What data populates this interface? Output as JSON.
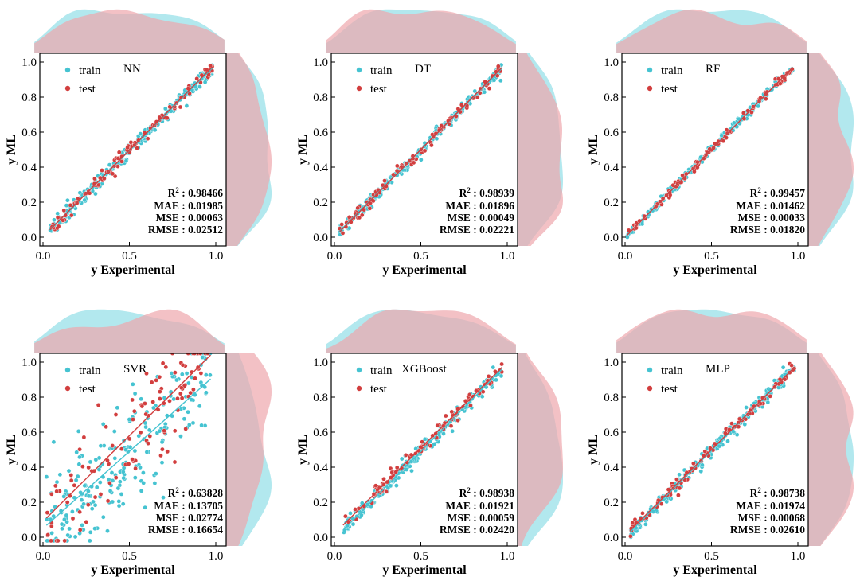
{
  "figure": {
    "colors": {
      "train": "#45c3d1",
      "test": "#d23e3e",
      "train_fill": "#9fe2ea",
      "test_fill": "#eea7ac",
      "overlap_fill": "#c8a9b0"
    }
  },
  "chart_data": [
    {
      "type": "scatter",
      "model": "NN",
      "legend": [
        "train",
        "test"
      ],
      "xlabel": "y Experimental",
      "ylabel": "y ML",
      "xlim": [
        -0.05,
        1.05
      ],
      "ylim": [
        -0.05,
        1.05
      ],
      "xticks": [
        "0.0",
        "0.5",
        "1.0"
      ],
      "yticks": [
        "0.0",
        "0.2",
        "0.4",
        "0.6",
        "0.8",
        "1.0"
      ],
      "metrics": {
        "r2": "0.98466",
        "mae": "0.01985",
        "mse": "0.00063",
        "rmse": "0.02512"
      },
      "fit_lines": {
        "train": {
          "slope": 0.98,
          "intercept": 0.005
        },
        "test": {
          "slope": 0.99,
          "intercept": 0.002
        }
      },
      "spread": 0.02,
      "x_range": [
        0.04,
        0.98
      ]
    },
    {
      "type": "scatter",
      "model": "DT",
      "legend": [
        "train",
        "test"
      ],
      "xlabel": "y Experimental",
      "ylabel": "y ML",
      "xlim": [
        -0.05,
        1.05
      ],
      "ylim": [
        -0.05,
        1.05
      ],
      "xticks": [
        "0.0",
        "0.5",
        "1.0"
      ],
      "yticks": [
        "0.0",
        "0.2",
        "0.4",
        "0.6",
        "0.8",
        "1.0"
      ],
      "metrics": {
        "r2": "0.98939",
        "mae": "0.01896",
        "mse": "0.00049",
        "rmse": "0.02221"
      },
      "fit_lines": {
        "train": {
          "slope": 0.99,
          "intercept": 0.005
        },
        "test": {
          "slope": 1.0,
          "intercept": 0.0
        }
      },
      "spread": 0.018,
      "x_range": [
        0.03,
        0.97
      ]
    },
    {
      "type": "scatter",
      "model": "RF",
      "legend": [
        "train",
        "test"
      ],
      "xlabel": "y Experimental",
      "ylabel": "y ML",
      "xlim": [
        -0.05,
        1.05
      ],
      "ylim": [
        -0.05,
        1.05
      ],
      "xticks": [
        "0.0",
        "0.5",
        "1.0"
      ],
      "yticks": [
        "0.0",
        "0.2",
        "0.4",
        "0.6",
        "0.8",
        "1.0"
      ],
      "metrics": {
        "r2": "0.99457",
        "mae": "0.01462",
        "mse": "0.00033",
        "rmse": "0.01820"
      },
      "fit_lines": {
        "train": {
          "slope": 1.0,
          "intercept": 0.0
        },
        "test": {
          "slope": 1.0,
          "intercept": 0.0
        }
      },
      "spread": 0.013,
      "x_range": [
        0.01,
        0.97
      ]
    },
    {
      "type": "scatter",
      "model": "SVR",
      "legend": [
        "train",
        "test"
      ],
      "xlabel": "y Experimental",
      "ylabel": "y ML",
      "xlim": [
        -0.05,
        1.05
      ],
      "ylim": [
        -0.05,
        1.05
      ],
      "xticks": [
        "0.0",
        "0.5",
        "1.0"
      ],
      "yticks": [
        "0.0",
        "0.2",
        "0.4",
        "0.6",
        "0.8",
        "1.0"
      ],
      "metrics": {
        "r2": "0.63828",
        "mae": "0.13705",
        "mse": "0.02774",
        "rmse": "0.16654"
      },
      "fit_lines": {
        "train": {
          "slope": 0.88,
          "intercept": 0.05
        },
        "test": {
          "slope": 0.98,
          "intercept": 0.09
        }
      },
      "spread": 0.17,
      "x_range": [
        0.02,
        0.97
      ]
    },
    {
      "type": "scatter",
      "model": "XGBoost",
      "legend": [
        "train",
        "test"
      ],
      "xlabel": "y Experimental",
      "ylabel": "y ML",
      "xlim": [
        -0.05,
        1.05
      ],
      "ylim": [
        -0.05,
        1.05
      ],
      "xticks": [
        "0.0",
        "0.5",
        "1.0"
      ],
      "yticks": [
        "0.0",
        "0.2",
        "0.4",
        "0.6",
        "0.8",
        "1.0"
      ],
      "metrics": {
        "r2": "0.98938",
        "mae": "0.01921",
        "mse": "0.00059",
        "rmse": "0.02420"
      },
      "fit_lines": {
        "train": {
          "slope": 1.0,
          "intercept": -0.01
        },
        "test": {
          "slope": 0.98,
          "intercept": 0.02
        }
      },
      "spread": 0.02,
      "x_range": [
        0.05,
        0.97
      ]
    },
    {
      "type": "scatter",
      "model": "MLP",
      "legend": [
        "train",
        "test"
      ],
      "xlabel": "y Experimental",
      "ylabel": "y ML",
      "xlim": [
        -0.05,
        1.05
      ],
      "ylim": [
        -0.05,
        1.05
      ],
      "xticks": [
        "0.0",
        "0.5",
        "1.0"
      ],
      "yticks": [
        "0.0",
        "0.2",
        "0.4",
        "0.6",
        "0.8",
        "1.0"
      ],
      "metrics": {
        "r2": "0.98738",
        "mae": "0.01974",
        "mse": "0.00068",
        "rmse": "0.02610"
      },
      "fit_lines": {
        "train": {
          "slope": 0.99,
          "intercept": 0.0
        },
        "test": {
          "slope": 0.98,
          "intercept": 0.01
        }
      },
      "spread": 0.02,
      "x_range": [
        0.03,
        0.98
      ]
    }
  ]
}
